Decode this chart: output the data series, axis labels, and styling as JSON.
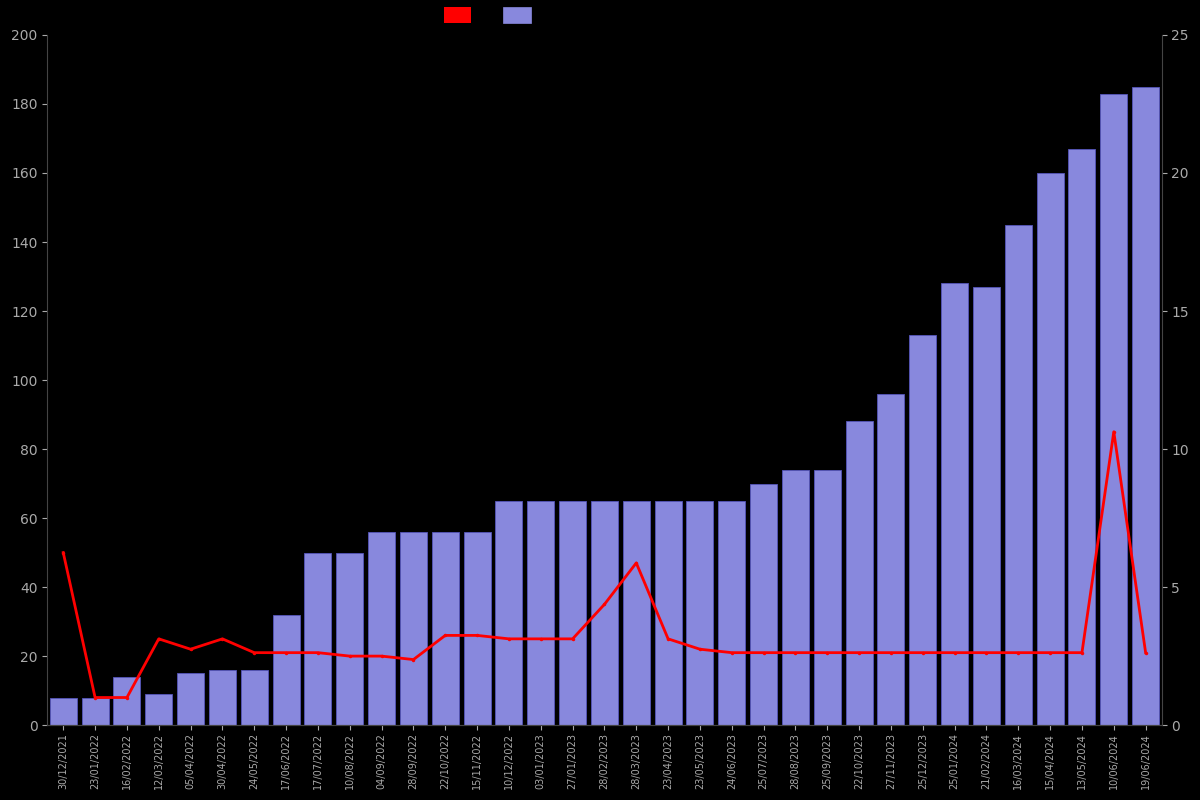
{
  "x_labels": [
    "30/12/2021",
    "23/01/2022",
    "16/02/2022",
    "12/03/2022",
    "05/04/2022",
    "30/04/2022",
    "24/05/2022",
    "17/06/2022",
    "17/07/2022",
    "10/08/2022",
    "04/09/2022",
    "28/09/2022",
    "22/10/2022",
    "15/11/2022",
    "10/12/2022",
    "03/01/2023",
    "27/01/2023",
    "28/02/2023",
    "28/03/2023",
    "23/04/2023",
    "23/05/2023",
    "24/06/2023",
    "25/07/2023",
    "28/08/2023",
    "25/09/2023",
    "22/10/2023",
    "27/11/2023",
    "25/12/2023",
    "25/01/2024",
    "21/02/2024",
    "16/03/2024",
    "15/04/2024",
    "13/05/2024",
    "10/06/2024",
    "19/06/2024"
  ],
  "bar_values": [
    8,
    8,
    14,
    9,
    15,
    16,
    16,
    32,
    50,
    50,
    56,
    56,
    56,
    56,
    65,
    65,
    65,
    65,
    65,
    65,
    65,
    65,
    70,
    74,
    74,
    88,
    96,
    113,
    128,
    127,
    145,
    160,
    167,
    183,
    185
  ],
  "price_values_right_axis": [
    6.25,
    1.0,
    1.0,
    3.125,
    2.75,
    3.125,
    2.625,
    2.625,
    2.625,
    2.5,
    2.5,
    2.375,
    3.25,
    3.25,
    3.125,
    3.125,
    3.125,
    4.375,
    5.875,
    3.125,
    2.75,
    2.625,
    2.625,
    2.625,
    2.625,
    2.625,
    2.625,
    2.625,
    2.625,
    2.625,
    2.625,
    2.625,
    2.625,
    10.625,
    2.625
  ],
  "bar_color": "#8888dd",
  "bar_edge_color": "#5555bb",
  "line_color": "#ff0000",
  "background_color": "#000000",
  "text_color": "#aaaaaa",
  "left_ylim": [
    0,
    200
  ],
  "right_ylim": [
    0,
    25
  ],
  "left_yticks": [
    0,
    20,
    40,
    60,
    80,
    100,
    120,
    140,
    160,
    180,
    200
  ],
  "right_yticks": [
    0,
    5,
    10,
    15,
    20,
    25
  ]
}
